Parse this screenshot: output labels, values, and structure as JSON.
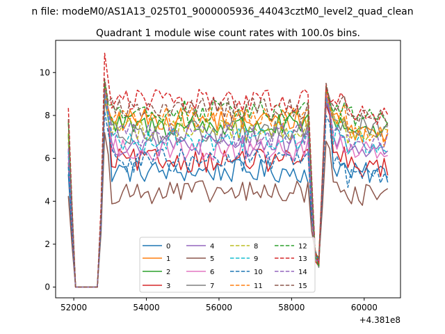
{
  "figure": {
    "suptitle": "n file: modeM0/AS1A13_025T01_9000005936_44043cztM0_level2_quad_clean"
  },
  "chart_data": {
    "type": "line",
    "title": "Quadrant 1 module wise count rates with 100.0s bins.",
    "xlabel": "",
    "ylabel": "",
    "x_offset_label": "+4.381e8",
    "xlim": [
      51500,
      61000
    ],
    "ylim": [
      -0.5,
      11.5
    ],
    "x_ticks": [
      52000,
      54000,
      56000,
      58000,
      60000
    ],
    "x_tick_labels": [
      "52000",
      "54000",
      "56000",
      "58000",
      "60000"
    ],
    "y_ticks": [
      0,
      2,
      4,
      6,
      8,
      10
    ],
    "y_tick_labels": [
      "0",
      "2",
      "4",
      "6",
      "8",
      "10"
    ],
    "grid": false,
    "legend_position": "lower center",
    "legend_columns": 4,
    "x": [
      51850,
      51950,
      52050,
      52150,
      52250,
      52350,
      52450,
      52550,
      52650,
      52750,
      52850,
      52950,
      53050,
      53150,
      53250,
      53350,
      53450,
      53550,
      53650,
      53750,
      53850,
      53950,
      54050,
      54150,
      54250,
      54350,
      54450,
      54550,
      54650,
      54750,
      54850,
      54950,
      55050,
      55150,
      55250,
      55350,
      55450,
      55550,
      55650,
      55750,
      55850,
      55950,
      56050,
      56150,
      56250,
      56350,
      56450,
      56550,
      56650,
      56750,
      56850,
      56950,
      57050,
      57150,
      57250,
      57350,
      57450,
      57550,
      57650,
      57750,
      57850,
      57950,
      58050,
      58150,
      58250,
      58350,
      58450,
      58550,
      58650,
      58750,
      58850,
      58950,
      59050,
      59150,
      59250,
      59350,
      59450,
      59550,
      59650,
      59750,
      59850,
      59950,
      60050,
      60150,
      60250,
      60350,
      60450,
      60550,
      60650
    ],
    "series": [
      {
        "name": "0",
        "color": "#1f77b4",
        "dash": false,
        "base": 5.4,
        "peak1": 8.9,
        "peak2": 8.6,
        "after": 5.3
      },
      {
        "name": "1",
        "color": "#ff7f0e",
        "dash": false,
        "base": 7.8,
        "peak1": 9.3,
        "peak2": 9.0,
        "after": 7.2
      },
      {
        "name": "2",
        "color": "#2ca02c",
        "dash": false,
        "base": 7.5,
        "peak1": 9.0,
        "peak2": 8.8,
        "after": 7.4
      },
      {
        "name": "3",
        "color": "#d62728",
        "dash": false,
        "base": 5.9,
        "peak1": 8.7,
        "peak2": 8.5,
        "after": 5.6
      },
      {
        "name": "4",
        "color": "#9467bd",
        "dash": false,
        "base": 6.6,
        "peak1": 9.0,
        "peak2": 8.7,
        "after": 6.4
      },
      {
        "name": "5",
        "color": "#8c564b",
        "dash": false,
        "base": 4.4,
        "peak1": 7.2,
        "peak2": 6.8,
        "after": 4.3
      },
      {
        "name": "6",
        "color": "#e377c2",
        "dash": false,
        "base": 6.4,
        "peak1": 9.2,
        "peak2": 8.9,
        "after": 6.5
      },
      {
        "name": "7",
        "color": "#7f7f7f",
        "dash": false,
        "base": 7.2,
        "peak1": 9.5,
        "peak2": 9.3,
        "after": 7.5
      },
      {
        "name": "8",
        "color": "#bcbd22",
        "dash": true,
        "base": 7.4,
        "peak1": 8.9,
        "peak2": 8.8,
        "after": 7.0
      },
      {
        "name": "9",
        "color": "#17becf",
        "dash": true,
        "base": 6.9,
        "peak1": 9.0,
        "peak2": 8.8,
        "after": 6.6
      },
      {
        "name": "10",
        "color": "#1f77b4",
        "dash": true,
        "base": 5.9,
        "peak1": 8.2,
        "peak2": 8.0,
        "after": 5.1
      },
      {
        "name": "11",
        "color": "#ff7f0e",
        "dash": true,
        "base": 7.9,
        "peak1": 9.4,
        "peak2": 9.2,
        "after": 7.0
      },
      {
        "name": "12",
        "color": "#2ca02c",
        "dash": true,
        "base": 8.2,
        "peak1": 9.6,
        "peak2": 9.4,
        "after": 7.9
      },
      {
        "name": "13",
        "color": "#d62728",
        "dash": true,
        "base": 8.7,
        "peak1": 10.9,
        "peak2": 9.4,
        "after": 8.0
      },
      {
        "name": "14",
        "color": "#9467bd",
        "dash": true,
        "base": 7.1,
        "peak1": 9.2,
        "peak2": 9.0,
        "after": 6.8
      },
      {
        "name": "15",
        "color": "#8c564b",
        "dash": true,
        "base": 8.3,
        "peak1": 9.7,
        "peak2": 9.5,
        "after": 7.8
      }
    ]
  }
}
